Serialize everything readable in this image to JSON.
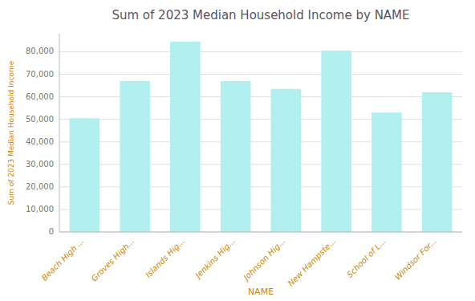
{
  "chart_data": {
    "type": "bar",
    "title": "Sum of 2023 Median Household Income by NAME",
    "xlabel": "NAME",
    "ylabel": "Sum of 2023 Median Household Income",
    "categories": [
      "Beach High ...",
      "Groves High...",
      "Islands Hig...",
      "Jenkins Hig...",
      "Johnson Hig...",
      "New Hampste...",
      "School of L...",
      "Windsor For..."
    ],
    "values": [
      50500,
      67000,
      84500,
      67000,
      63500,
      80500,
      53000,
      62000
    ],
    "color": "#b2f0f0",
    "ylim": [
      0,
      88000
    ],
    "yticks": [
      0,
      {
        "value": 10000,
        "label": "10,000"
      },
      {
        "value": 20000,
        "label": "20,000"
      },
      {
        "value": 30000,
        "label": "30,000"
      },
      {
        "value": 40000,
        "label": "40,000"
      },
      {
        "value": 50000,
        "label": "50,000"
      },
      {
        "value": 60000,
        "label": "60,000"
      },
      {
        "value": 70000,
        "label": "70,000"
      },
      {
        "value": 80000,
        "label": "80,000"
      }
    ],
    "grid": true
  }
}
